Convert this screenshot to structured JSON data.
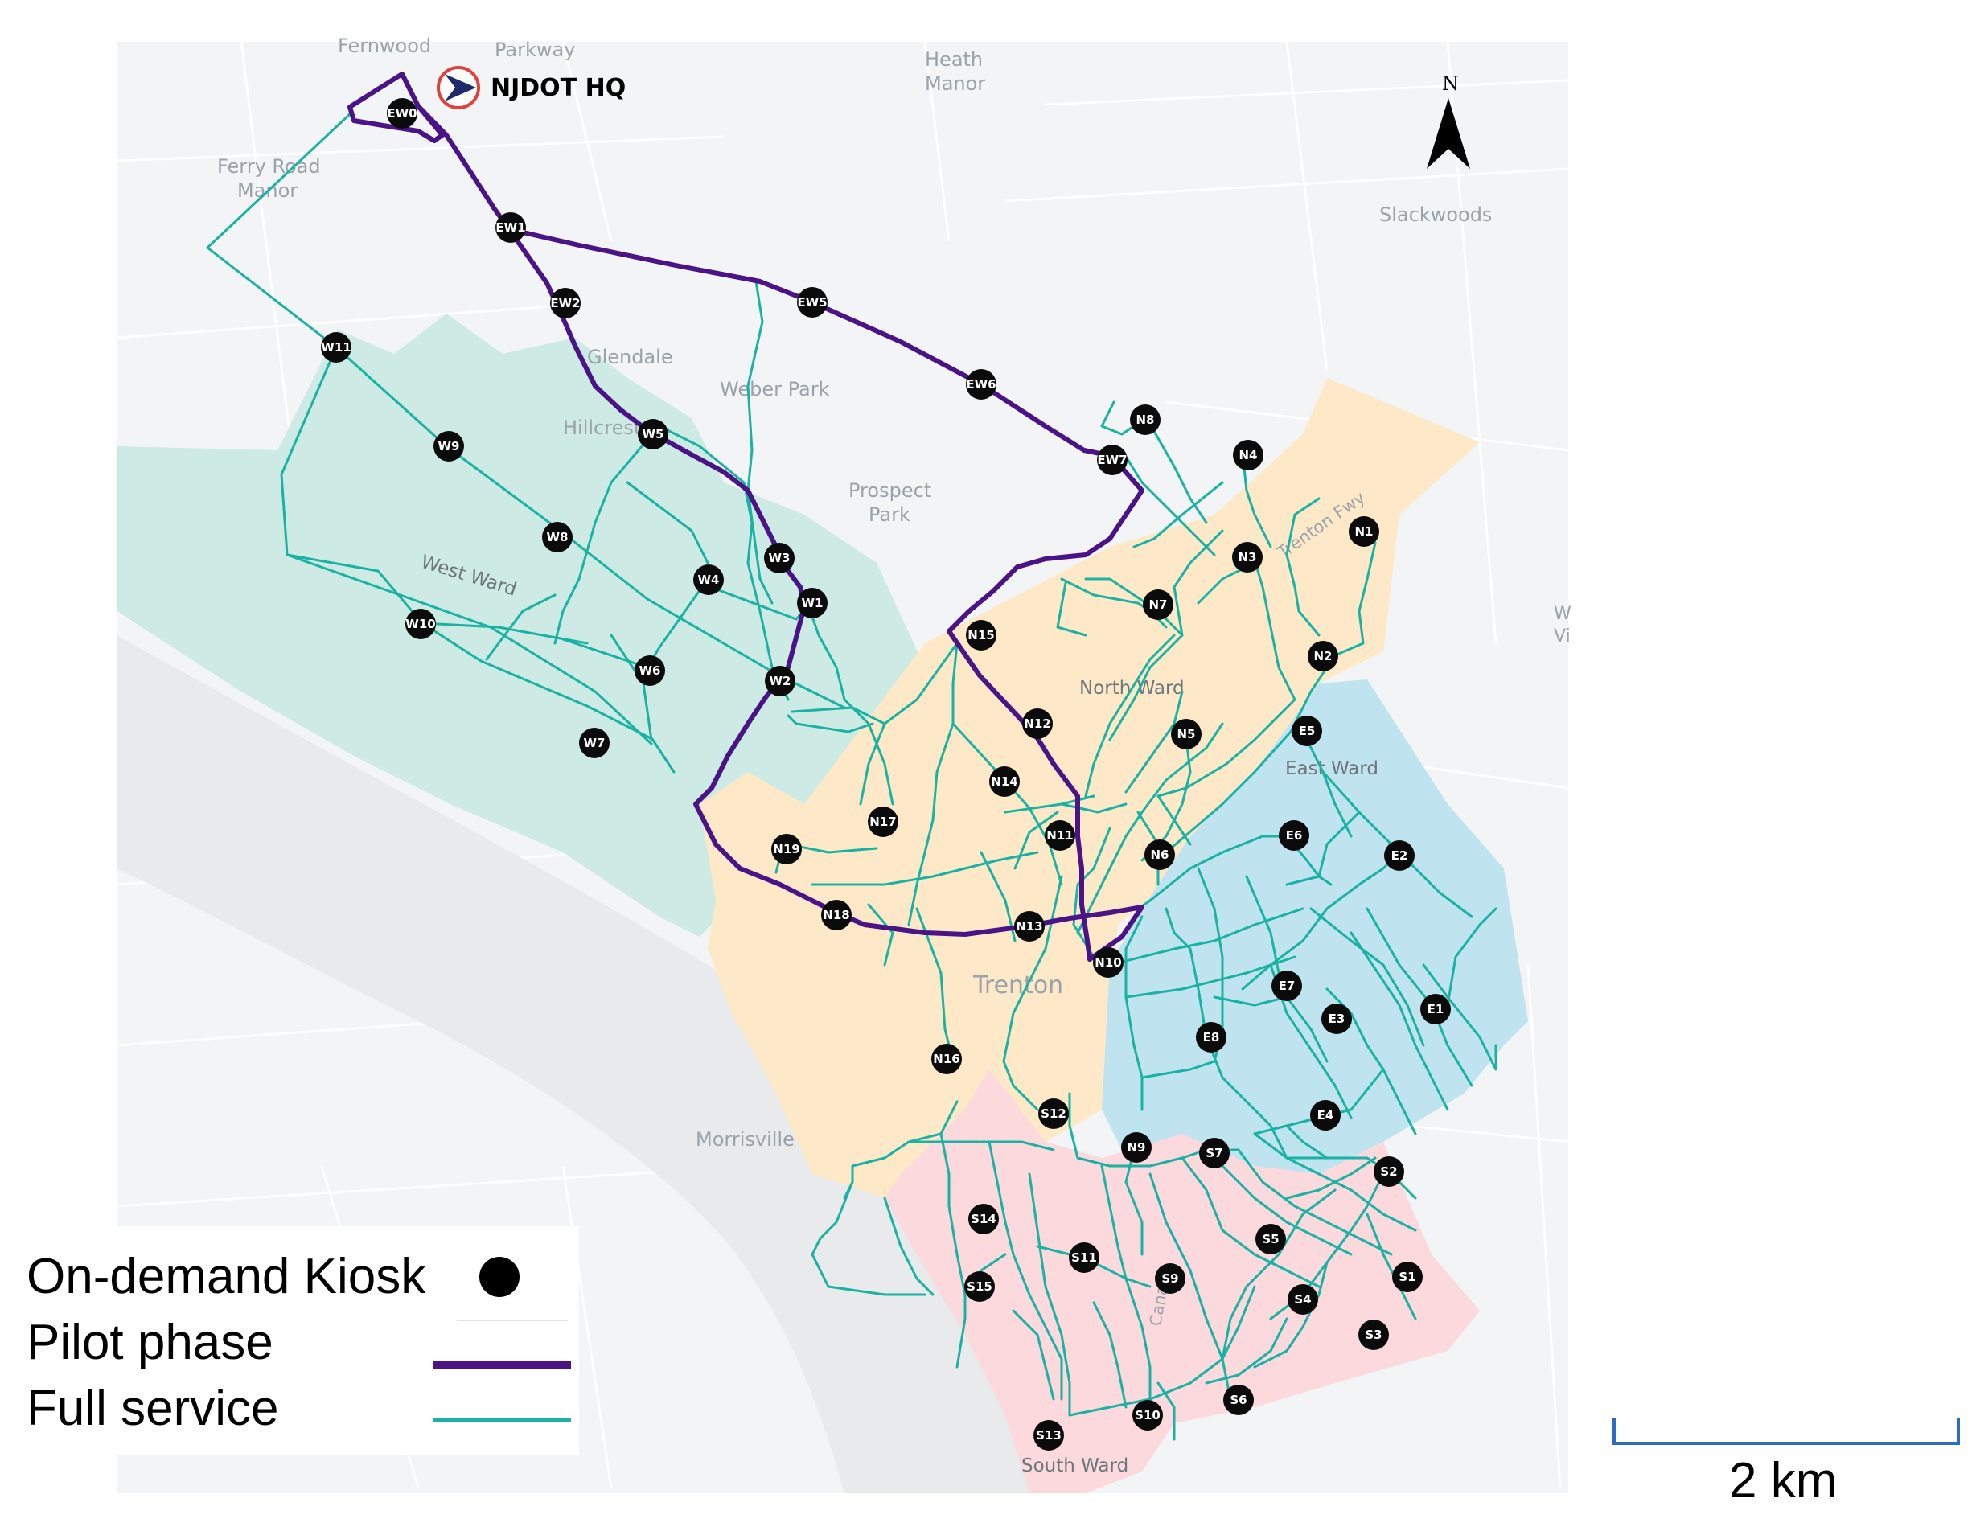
{
  "map": {
    "hq_label": "NJDOT HQ",
    "north_label": "N",
    "scale_label": "2 km",
    "colors": {
      "pilot": "#4a1486",
      "full": "#1ab3a3",
      "west_ward": "#cdeae4",
      "north_ward": "#fde9c8",
      "east_ward": "#bfe3ef",
      "south_ward": "#fbd9dd",
      "hq_ring": "#e0413c",
      "scale_bar": "#2b6cc4"
    },
    "places": [
      "Fernwood",
      "Parkway",
      "Heath",
      "Manor",
      "Ferry Road",
      "Manor",
      "Slackwoods",
      "Glendale",
      "Weber Park",
      "Hillcrest",
      "Prospect",
      "Park",
      "Trenton",
      "Morrisville",
      "Trenton Fwy",
      "Canal",
      "W",
      "Vi"
    ],
    "wards": [
      "West Ward",
      "North Ward",
      "East Ward",
      "South Ward"
    ],
    "kiosks": [
      "EW0",
      "EW1",
      "EW2",
      "EW5",
      "EW6",
      "EW7",
      "W11",
      "W9",
      "W8",
      "W5",
      "W4",
      "W3",
      "W1",
      "W10",
      "W6",
      "W2",
      "W7",
      "N8",
      "N4",
      "N1",
      "N3",
      "N7",
      "N15",
      "N2",
      "N12",
      "N5",
      "E5",
      "N14",
      "N17",
      "N11",
      "N6",
      "N19",
      "E6",
      "E2",
      "N18",
      "N13",
      "N10",
      "E7",
      "E3",
      "E1",
      "E8",
      "N16",
      "S12",
      "E4",
      "N9",
      "S7",
      "S2",
      "S14",
      "S5",
      "S11",
      "S9",
      "S1",
      "S15",
      "S4",
      "S3",
      "S6",
      "S10",
      "S13"
    ]
  },
  "legend": {
    "kiosk_label": "On-demand Kiosk",
    "pilot_label": "Pilot phase",
    "full_label": "Full service"
  }
}
